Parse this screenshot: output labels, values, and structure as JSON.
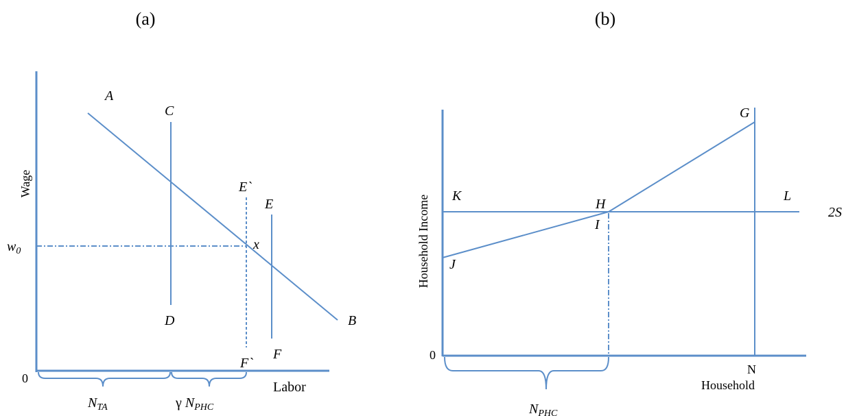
{
  "panel_a": {
    "caption": "(a)",
    "y_axis_label": "Wage",
    "x_axis_label": "Labor",
    "origin": "0",
    "w0_main": "w",
    "w0_sub": "0",
    "point_labels": {
      "A": "A",
      "B": "B",
      "C": "C",
      "D": "D",
      "E": "E",
      "F": "F",
      "E_prime": "E`",
      "F_prime": "F`",
      "x": "x"
    },
    "brace_1_main": "N",
    "brace_1_sub": "TA",
    "brace_2_prefix": "γ ",
    "brace_2_main": "N",
    "brace_2_sub": "PHC"
  },
  "panel_b": {
    "caption": "(b)",
    "y_axis_label": "Household Income",
    "x_axis_label": "Household",
    "origin": "0",
    "point_labels": {
      "G": "G",
      "H": "H",
      "I": "I",
      "J": "J",
      "K": "K",
      "L": "L",
      "N": "N"
    },
    "two_s": "2S",
    "brace_main": "N",
    "brace_sub": "PHC"
  },
  "colors": {
    "line": "#5b8ec9",
    "text": "#000000"
  }
}
